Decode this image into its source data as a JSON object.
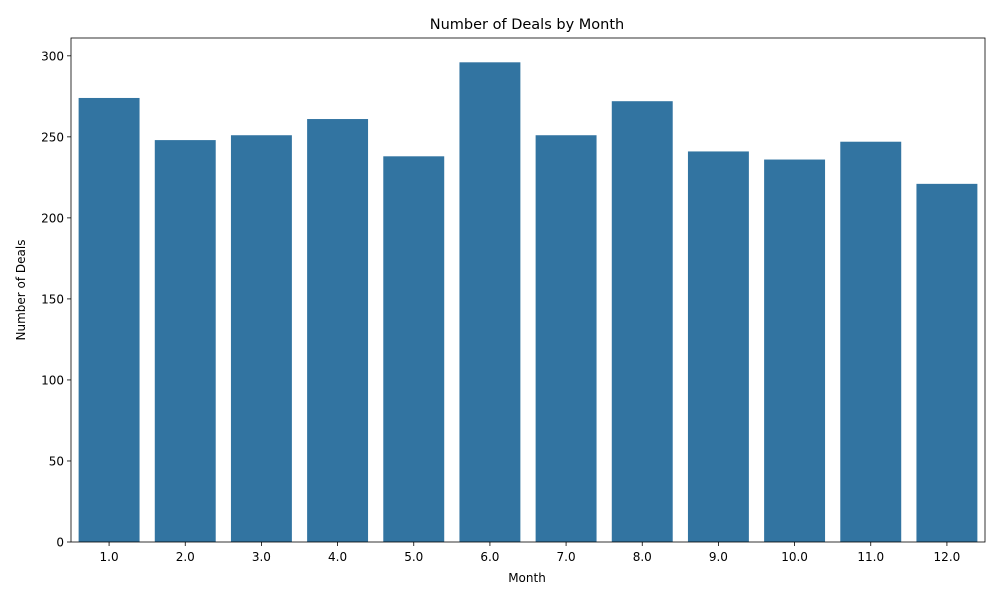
{
  "chart_data": {
    "type": "bar",
    "title": "Number of Deals by Month",
    "xlabel": "Month",
    "ylabel": "Number of Deals",
    "categories": [
      "1.0",
      "2.0",
      "3.0",
      "4.0",
      "5.0",
      "6.0",
      "7.0",
      "8.0",
      "9.0",
      "10.0",
      "11.0",
      "12.0"
    ],
    "values": [
      274,
      248,
      251,
      261,
      238,
      296,
      251,
      272,
      241,
      236,
      247,
      221
    ],
    "ylim": [
      0,
      311
    ],
    "yticks": [
      "0",
      "50",
      "100",
      "150",
      "200",
      "250",
      "300"
    ],
    "grid": false,
    "legend": "none",
    "bar_color": "#3274a1"
  }
}
